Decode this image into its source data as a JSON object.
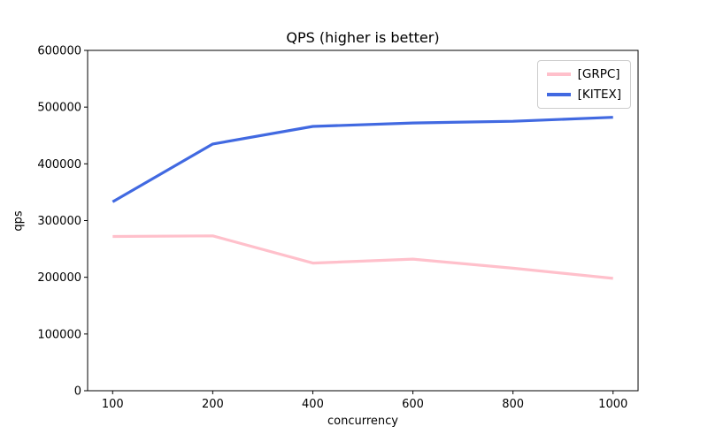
{
  "figure": {
    "title": "QPS (higher is better)",
    "xlabel": "concurrency",
    "ylabel": "qps"
  },
  "chart_data": {
    "type": "line",
    "title": "QPS (higher is better)",
    "xlabel": "concurrency",
    "ylabel": "qps",
    "x_scale": "categorical",
    "categories": [
      100,
      200,
      400,
      600,
      800,
      1000
    ],
    "y_ticks": [
      0,
      100000,
      200000,
      300000,
      400000,
      500000,
      600000
    ],
    "ylim": [
      0,
      600000
    ],
    "grid": false,
    "legend_position": "upper right",
    "series": [
      {
        "name": "[GRPC]",
        "color": "#ffc0cb",
        "values": [
          272000,
          273000,
          225000,
          232000,
          216000,
          198000
        ]
      },
      {
        "name": "[KITEX]",
        "color": "#4169e1",
        "values": [
          333000,
          435000,
          466000,
          472000,
          475000,
          482000
        ]
      }
    ]
  },
  "colors": {
    "spine": "#000000",
    "tick": "#000000",
    "background": "#ffffff",
    "legend_border": "#cccccc"
  }
}
